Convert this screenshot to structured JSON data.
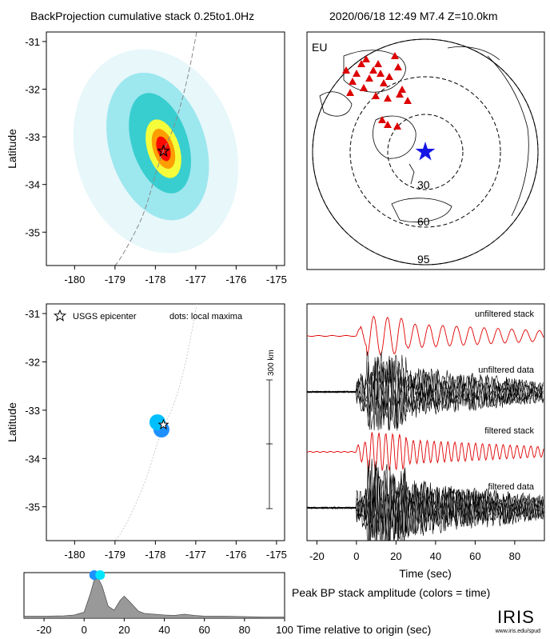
{
  "header": {
    "title": "BackProjection cumulative stack 0.25to1.0Hz",
    "event": "2020/06/18 12:49   M7.4   Z=10.0km"
  },
  "logo": {
    "text": "IRIS",
    "url": "www.iris.edu/spud"
  },
  "chart_data": [
    {
      "type": "heatmap",
      "name": "cumulative-stack-map",
      "ylabel": "Latitude",
      "xticks": [
        "-180",
        "-179",
        "-178",
        "-177",
        "-176",
        "-175"
      ],
      "yticks": [
        "-31",
        "-32",
        "-33",
        "-34",
        "-35"
      ],
      "xlim": [
        -180.7,
        -174.8
      ],
      "ylim": [
        -35.7,
        -30.8
      ],
      "peak": {
        "lon": -177.8,
        "lat": -33.25
      },
      "epicenter": {
        "lon": -177.8,
        "lat": -33.3
      },
      "colormap": [
        "#e6f7fa",
        "#99e6ee",
        "#33cccc",
        "#ffff33",
        "#ff9900",
        "#ff0000"
      ]
    },
    {
      "type": "map",
      "name": "station-map",
      "region_label": "EU",
      "range_rings": [
        "30",
        "60",
        "95"
      ],
      "station_color": "#dd0000",
      "epicenter_color": "#1515e6"
    },
    {
      "type": "scatter",
      "name": "local-maxima-map",
      "ylabel": "Latitude",
      "legend_epicenter": "USGS epicenter",
      "legend_dots": "dots: local maxima",
      "scale_label": "300 km",
      "xticks": [
        "-180",
        "-179",
        "-178",
        "-177",
        "-176",
        "-175"
      ],
      "yticks": [
        "-31",
        "-32",
        "-33",
        "-34",
        "-35"
      ],
      "xlim": [
        -180.7,
        -174.8
      ],
      "ylim": [
        -35.7,
        -30.8
      ],
      "points": [
        {
          "lon": -177.85,
          "lat": -33.4,
          "color": "#1e90ff"
        },
        {
          "lon": -177.95,
          "lat": -33.25,
          "color": "#00bfff"
        }
      ],
      "epicenter": {
        "lon": -177.8,
        "lat": -33.3
      }
    },
    {
      "type": "line",
      "name": "stack-traces",
      "xlabel": "Time (sec)",
      "xticks": [
        "-20",
        "0",
        "20",
        "40",
        "60",
        "80"
      ],
      "xlim": [
        -25,
        95
      ],
      "traces": [
        {
          "label": "unfiltered stack",
          "color": "#e00000"
        },
        {
          "label": "unfiltered data",
          "color": "#000000"
        },
        {
          "label": "filtered stack",
          "color": "#e00000"
        },
        {
          "label": "filtered data",
          "color": "#000000"
        }
      ]
    },
    {
      "type": "area",
      "name": "peak-amplitude",
      "title": "Peak BP stack amplitude (colors = time)",
      "xlabel": "Time relative to origin (sec)",
      "xticks": [
        "-20",
        "0",
        "20",
        "40",
        "60",
        "80",
        "100"
      ],
      "xlim": [
        -30,
        100
      ],
      "x": [
        -30,
        -20,
        -10,
        -5,
        0,
        3,
        5,
        7,
        9,
        12,
        15,
        18,
        20,
        23,
        27,
        30,
        35,
        40,
        45,
        50,
        55,
        60,
        70,
        80,
        90,
        100
      ],
      "values": [
        0.05,
        0.05,
        0.06,
        0.08,
        0.15,
        0.6,
        0.95,
        1.0,
        0.8,
        0.3,
        0.2,
        0.45,
        0.55,
        0.4,
        0.18,
        0.12,
        0.1,
        0.08,
        0.07,
        0.1,
        0.07,
        0.05,
        0.05,
        0.04,
        0.03,
        0.03
      ],
      "markers": [
        {
          "t": 5,
          "color": "#1e90ff"
        },
        {
          "t": 8,
          "color": "#00e5ff"
        }
      ]
    }
  ]
}
